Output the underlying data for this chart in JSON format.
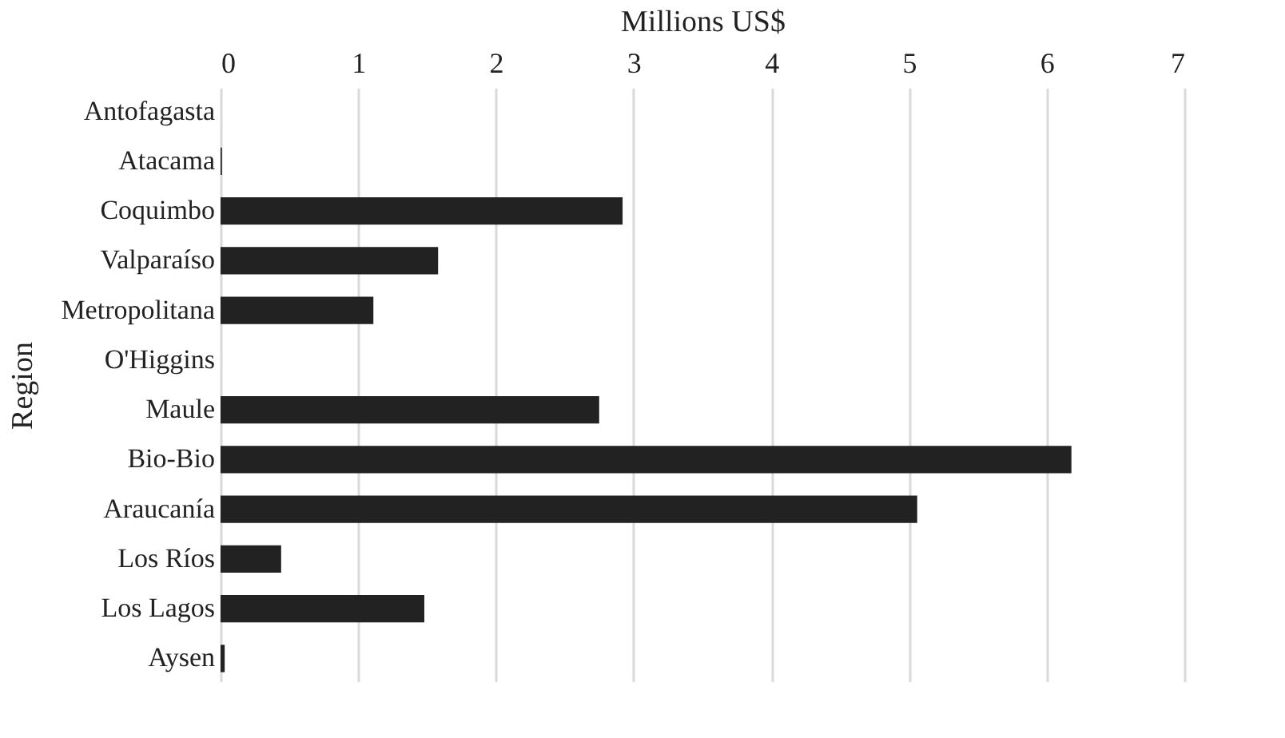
{
  "chart_data": {
    "type": "bar",
    "orientation": "horizontal",
    "xlabel": "Millions US$",
    "ylabel": "Region",
    "categories": [
      "Antofagasta",
      "Atacama",
      "Coquimbo",
      "Valparaíso",
      "Metropolitana",
      "O'Higgins",
      "Maule",
      "Bio-Bio",
      "Araucanía",
      "Los Ríos",
      "Los Lagos",
      "Aysen"
    ],
    "values": [
      0,
      0.01,
      2.92,
      1.58,
      1.11,
      0,
      2.75,
      6.18,
      5.06,
      0.44,
      1.48,
      0.03
    ],
    "color": "#222222",
    "xlim": [
      0,
      7
    ],
    "xticks": [
      0,
      1,
      2,
      3,
      4,
      5,
      6,
      7
    ],
    "grid": "x"
  }
}
